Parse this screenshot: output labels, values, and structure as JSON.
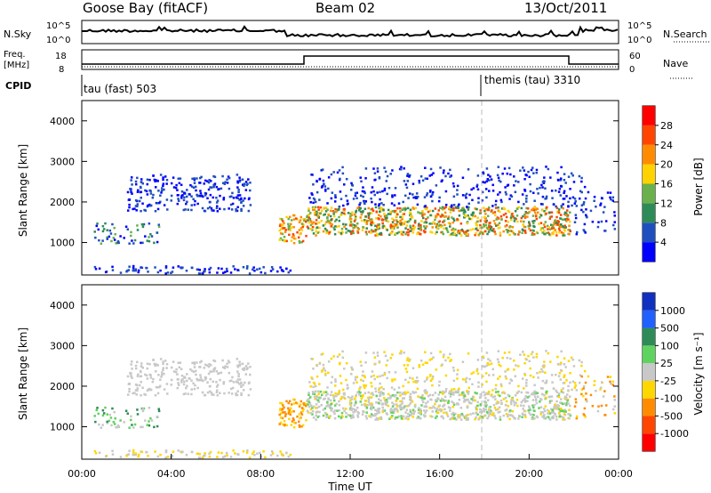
{
  "header": {
    "station": "Goose Bay (fitACF)",
    "beam": "Beam 02",
    "date": "13/Oct/2011"
  },
  "top_panel": {
    "left_label": "N.Sky",
    "left_ticks": [
      "10^5",
      "10^0"
    ],
    "right_label": "N.Search",
    "right_ticks": [
      "10^5",
      "10^0"
    ]
  },
  "freq_panel": {
    "left_label_1": "Freq.",
    "left_label_2": "[MHz]",
    "left_ticks": [
      "18",
      "8"
    ],
    "right_label": "Nave",
    "right_ticks": [
      "60",
      "0"
    ]
  },
  "cpid_panel": {
    "label": "CPID",
    "program_1": "tau (fast) 503",
    "program_2": "themis (tau) 3310"
  },
  "chart_data": [
    {
      "type": "heatmap",
      "title": "",
      "xlabel": "",
      "ylabel": "Slant Range [km]",
      "ylim": [
        200,
        4500
      ],
      "yticks": [
        "1000",
        "2000",
        "3000",
        "4000"
      ],
      "colorbar_label": "Power [dB]",
      "colorbar_ticks": [
        "4",
        "8",
        "12",
        "16",
        "20",
        "24",
        "28"
      ],
      "colorbar_colors": [
        "#0000ff",
        "#1f4fbf",
        "#2e8b57",
        "#6ab04c",
        "#ffd200",
        "#ff8c00",
        "#ff4500",
        "#ff0000"
      ]
    },
    {
      "type": "heatmap",
      "title": "",
      "xlabel": "Time UT",
      "ylabel": "Slant Range [km]",
      "ylim": [
        200,
        4500
      ],
      "yticks": [
        "1000",
        "2000",
        "3000",
        "4000"
      ],
      "xticks": [
        "00:00",
        "04:00",
        "08:00",
        "12:00",
        "16:00",
        "20:00",
        "00:00"
      ],
      "colorbar_label": "Velocity [m s⁻¹]",
      "colorbar_ticks": [
        "1000",
        "500",
        "100",
        "25",
        "-25",
        "-100",
        "-500",
        "-1000"
      ],
      "colorbar_colors": [
        "#1030c0",
        "#2060ff",
        "#2e8b57",
        "#5fd35f",
        "#c8c8c8",
        "#ffd700",
        "#ff8c00",
        "#ff4500",
        "#ff0000"
      ]
    }
  ]
}
